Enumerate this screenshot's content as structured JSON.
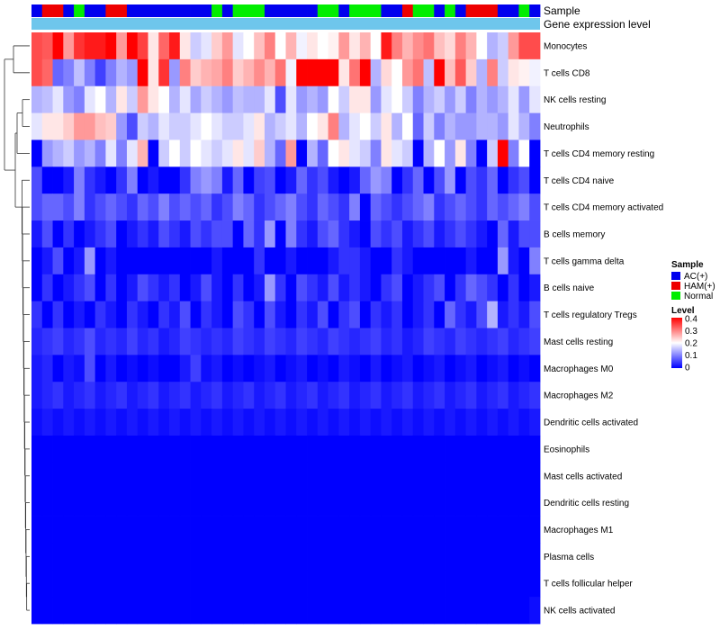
{
  "chart_data": {
    "type": "heatmap",
    "title": "",
    "tracks": {
      "sample_label": "Sample",
      "gene_label": "Gene expression level"
    },
    "sample_groups": [
      "AC(+)",
      "HAM(+)",
      "HAM(+)",
      "AC(+)",
      "Normal",
      "AC(+)",
      "AC(+)",
      "HAM(+)",
      "HAM(+)",
      "AC(+)",
      "AC(+)",
      "AC(+)",
      "AC(+)",
      "AC(+)",
      "AC(+)",
      "AC(+)",
      "AC(+)",
      "Normal",
      "AC(+)",
      "Normal",
      "Normal",
      "Normal",
      "AC(+)",
      "AC(+)",
      "AC(+)",
      "AC(+)",
      "AC(+)",
      "Normal",
      "Normal",
      "AC(+)",
      "Normal",
      "Normal",
      "Normal",
      "AC(+)",
      "AC(+)",
      "HAM(+)",
      "Normal",
      "Normal",
      "AC(+)",
      "Normal",
      "AC(+)",
      "HAM(+)",
      "HAM(+)",
      "HAM(+)",
      "AC(+)",
      "AC(+)",
      "Normal",
      "AC(+)"
    ],
    "rows": [
      "Monocytes",
      "T cells CD8",
      "NK cells resting",
      "Neutrophils",
      "T cells CD4 memory resting",
      "T cells CD4 naive",
      "T cells CD4 memory activated",
      "B cells memory",
      "T cells gamma delta",
      "B cells naive",
      "T cells regulatory  Tregs",
      "Mast cells resting",
      "Macrophages M0",
      "Macrophages M2",
      "Dendritic cells activated",
      "Eosinophils",
      "Mast cells activated",
      "Dendritic cells resting",
      "Macrophages M1",
      "Plasma cells",
      "T cells follicular helper",
      "NK cells activated"
    ],
    "values": [
      [
        0.34,
        0.33,
        0.4,
        0.28,
        0.36,
        0.38,
        0.38,
        0.4,
        0.28,
        0.4,
        0.35,
        0.22,
        0.32,
        0.38,
        0.22,
        0.16,
        0.18,
        0.24,
        0.28,
        0.18,
        0.2,
        0.25,
        0.3,
        0.2,
        0.26,
        0.19,
        0.22,
        0.2,
        0.21,
        0.28,
        0.22,
        0.26,
        0.2,
        0.38,
        0.3,
        0.26,
        0.29,
        0.31,
        0.25,
        0.23,
        0.3,
        0.26,
        0.2,
        0.14,
        0.16,
        0.28,
        0.34,
        0.34
      ],
      [
        0.34,
        0.32,
        0.08,
        0.1,
        0.15,
        0.1,
        0.05,
        0.1,
        0.14,
        0.12,
        0.4,
        0.22,
        0.36,
        0.12,
        0.3,
        0.24,
        0.26,
        0.27,
        0.3,
        0.24,
        0.26,
        0.29,
        0.26,
        0.31,
        0.19,
        0.42,
        0.4,
        0.4,
        0.42,
        0.22,
        0.31,
        0.4,
        0.14,
        0.23,
        0.2,
        0.28,
        0.31,
        0.15,
        0.4,
        0.25,
        0.33,
        0.24,
        0.14,
        0.3,
        0.16,
        0.22,
        0.21,
        0.19
      ],
      [
        0.14,
        0.15,
        0.18,
        0.12,
        0.1,
        0.18,
        0.2,
        0.14,
        0.22,
        0.16,
        0.28,
        0.22,
        0.2,
        0.14,
        0.18,
        0.13,
        0.16,
        0.14,
        0.12,
        0.15,
        0.14,
        0.14,
        0.18,
        0.06,
        0.18,
        0.12,
        0.14,
        0.12,
        0.2,
        0.16,
        0.22,
        0.22,
        0.12,
        0.18,
        0.2,
        0.16,
        0.1,
        0.14,
        0.16,
        0.12,
        0.16,
        0.1,
        0.14,
        0.12,
        0.14,
        0.18,
        0.12,
        0.18
      ],
      [
        0.18,
        0.22,
        0.22,
        0.24,
        0.28,
        0.28,
        0.25,
        0.24,
        0.12,
        0.06,
        0.16,
        0.14,
        0.18,
        0.16,
        0.16,
        0.18,
        0.2,
        0.18,
        0.16,
        0.16,
        0.18,
        0.22,
        0.14,
        0.16,
        0.18,
        0.14,
        0.2,
        0.22,
        0.3,
        0.14,
        0.18,
        0.2,
        0.16,
        0.22,
        0.14,
        0.2,
        0.08,
        0.16,
        0.1,
        0.14,
        0.12,
        0.12,
        0.14,
        0.14,
        0.12,
        0.18,
        0.14,
        0.1
      ],
      [
        0.0,
        0.12,
        0.14,
        0.16,
        0.12,
        0.14,
        0.1,
        0.18,
        0.1,
        0.18,
        0.26,
        0.0,
        0.16,
        0.2,
        0.16,
        0.2,
        0.18,
        0.16,
        0.18,
        0.22,
        0.18,
        0.24,
        0.14,
        0.08,
        0.28,
        0.0,
        0.14,
        0.08,
        0.2,
        0.22,
        0.18,
        0.16,
        0.1,
        0.22,
        0.18,
        0.16,
        0.0,
        0.14,
        0.2,
        0.12,
        0.22,
        0.1,
        0.0,
        0.16,
        0.4,
        0.1,
        0.2,
        0.0
      ],
      [
        0.06,
        0.0,
        0.0,
        0.02,
        0.1,
        0.04,
        0.02,
        0.0,
        0.04,
        0.1,
        0.0,
        0.02,
        0.0,
        0.0,
        0.04,
        0.1,
        0.12,
        0.1,
        0.02,
        0.08,
        0.0,
        0.05,
        0.06,
        0.0,
        0.02,
        0.08,
        0.04,
        0.06,
        0.02,
        0.0,
        0.02,
        0.08,
        0.12,
        0.1,
        0.0,
        0.04,
        0.08,
        0.0,
        0.06,
        0.12,
        0.0,
        0.06,
        0.04,
        0.08,
        0.0,
        0.04,
        0.06,
        0.0
      ],
      [
        0.06,
        0.08,
        0.08,
        0.06,
        0.1,
        0.04,
        0.06,
        0.08,
        0.06,
        0.04,
        0.08,
        0.06,
        0.1,
        0.06,
        0.08,
        0.06,
        0.08,
        0.04,
        0.06,
        0.1,
        0.08,
        0.04,
        0.06,
        0.08,
        0.1,
        0.06,
        0.04,
        0.08,
        0.06,
        0.04,
        0.1,
        0.0,
        0.08,
        0.06,
        0.04,
        0.06,
        0.08,
        0.1,
        0.04,
        0.06,
        0.08,
        0.06,
        0.04,
        0.08,
        0.06,
        0.08,
        0.1,
        0.06
      ],
      [
        0.02,
        0.06,
        0.0,
        0.04,
        0.0,
        0.02,
        0.04,
        0.06,
        0.0,
        0.02,
        0.04,
        0.02,
        0.06,
        0.04,
        0.02,
        0.06,
        0.04,
        0.06,
        0.06,
        0.0,
        0.08,
        0.04,
        0.12,
        0.0,
        0.1,
        0.04,
        0.02,
        0.06,
        0.08,
        0.04,
        0.02,
        0.0,
        0.06,
        0.04,
        0.06,
        0.02,
        0.04,
        0.06,
        0.02,
        0.04,
        0.06,
        0.04,
        0.02,
        0.0,
        0.08,
        0.02,
        0.06,
        0.06
      ],
      [
        0.0,
        0.02,
        0.06,
        0.0,
        0.02,
        0.12,
        0.0,
        0.02,
        0.0,
        0.0,
        0.0,
        0.0,
        0.0,
        0.0,
        0.0,
        0.0,
        0.0,
        0.02,
        0.0,
        0.0,
        0.0,
        0.04,
        0.0,
        0.0,
        0.02,
        0.0,
        0.0,
        0.0,
        0.02,
        0.04,
        0.04,
        0.02,
        0.0,
        0.0,
        0.04,
        0.02,
        0.0,
        0.0,
        0.0,
        0.0,
        0.0,
        0.02,
        0.0,
        0.0,
        0.12,
        0.02,
        0.0,
        0.1
      ],
      [
        0.0,
        0.04,
        0.0,
        0.02,
        0.04,
        0.06,
        0.0,
        0.04,
        0.0,
        0.02,
        0.06,
        0.04,
        0.02,
        0.04,
        0.0,
        0.02,
        0.06,
        0.02,
        0.0,
        0.04,
        0.0,
        0.02,
        0.12,
        0.04,
        0.0,
        0.06,
        0.04,
        0.02,
        0.06,
        0.02,
        0.04,
        0.02,
        0.0,
        0.04,
        0.06,
        0.0,
        0.02,
        0.04,
        0.06,
        0.0,
        0.04,
        0.08,
        0.06,
        0.04,
        0.0,
        0.04,
        0.0,
        0.02
      ],
      [
        0.04,
        0.0,
        0.04,
        0.0,
        0.02,
        0.0,
        0.04,
        0.02,
        0.0,
        0.04,
        0.02,
        0.0,
        0.04,
        0.02,
        0.06,
        0.0,
        0.04,
        0.02,
        0.0,
        0.06,
        0.04,
        0.0,
        0.06,
        0.02,
        0.0,
        0.04,
        0.02,
        0.06,
        0.0,
        0.04,
        0.06,
        0.0,
        0.04,
        0.02,
        0.04,
        0.0,
        0.02,
        0.04,
        0.0,
        0.08,
        0.04,
        0.02,
        0.06,
        0.14,
        0.02,
        0.04,
        0.02,
        0.06
      ],
      [
        0.03,
        0.04,
        0.05,
        0.03,
        0.04,
        0.06,
        0.03,
        0.04,
        0.03,
        0.05,
        0.03,
        0.04,
        0.02,
        0.03,
        0.05,
        0.04,
        0.03,
        0.04,
        0.03,
        0.05,
        0.04,
        0.03,
        0.05,
        0.04,
        0.03,
        0.05,
        0.04,
        0.03,
        0.05,
        0.04,
        0.03,
        0.04,
        0.05,
        0.03,
        0.04,
        0.02,
        0.03,
        0.05,
        0.04,
        0.03,
        0.05,
        0.04,
        0.03,
        0.04,
        0.05,
        0.03,
        0.04,
        0.05
      ],
      [
        0.02,
        0.03,
        0.0,
        0.02,
        0.01,
        0.06,
        0.0,
        0.02,
        0.0,
        0.01,
        0.0,
        0.01,
        0.0,
        0.0,
        0.02,
        0.05,
        0.01,
        0.02,
        0.0,
        0.01,
        0.0,
        0.01,
        0.02,
        0.0,
        0.01,
        0.02,
        0.0,
        0.01,
        0.0,
        0.02,
        0.01,
        0.0,
        0.02,
        0.0,
        0.01,
        0.02,
        0.0,
        0.01,
        0.02,
        0.0,
        0.01,
        0.02,
        0.0,
        0.01,
        0.02,
        0.0,
        0.01,
        0.0
      ],
      [
        0.02,
        0.03,
        0.04,
        0.02,
        0.03,
        0.04,
        0.02,
        0.03,
        0.04,
        0.02,
        0.03,
        0.04,
        0.02,
        0.03,
        0.04,
        0.02,
        0.03,
        0.04,
        0.02,
        0.03,
        0.04,
        0.02,
        0.03,
        0.04,
        0.02,
        0.03,
        0.04,
        0.02,
        0.03,
        0.04,
        0.02,
        0.03,
        0.04,
        0.02,
        0.03,
        0.04,
        0.02,
        0.03,
        0.04,
        0.02,
        0.03,
        0.04,
        0.02,
        0.03,
        0.04,
        0.02,
        0.03,
        0.04
      ],
      [
        0.01,
        0.02,
        0.01,
        0.02,
        0.01,
        0.02,
        0.01,
        0.02,
        0.01,
        0.02,
        0.01,
        0.02,
        0.01,
        0.02,
        0.01,
        0.02,
        0.01,
        0.02,
        0.01,
        0.02,
        0.01,
        0.02,
        0.01,
        0.02,
        0.01,
        0.02,
        0.01,
        0.02,
        0.01,
        0.02,
        0.01,
        0.02,
        0.01,
        0.02,
        0.01,
        0.02,
        0.01,
        0.02,
        0.01,
        0.02,
        0.01,
        0.02,
        0.01,
        0.02,
        0.01,
        0.02,
        0.01,
        0.02
      ],
      [
        0,
        0,
        0,
        0,
        0,
        0,
        0,
        0,
        0,
        0,
        0,
        0,
        0,
        0,
        0,
        0,
        0,
        0,
        0,
        0,
        0,
        0,
        0,
        0,
        0,
        0,
        0,
        0,
        0,
        0,
        0,
        0,
        0,
        0,
        0,
        0,
        0,
        0,
        0,
        0,
        0,
        0,
        0,
        0,
        0,
        0,
        0,
        0
      ],
      [
        0,
        0,
        0,
        0,
        0,
        0,
        0,
        0,
        0,
        0,
        0,
        0,
        0,
        0,
        0,
        0,
        0,
        0,
        0,
        0,
        0,
        0,
        0,
        0,
        0,
        0,
        0,
        0,
        0,
        0,
        0,
        0,
        0,
        0,
        0,
        0,
        0,
        0,
        0,
        0,
        0,
        0,
        0,
        0,
        0,
        0,
        0,
        0
      ],
      [
        0,
        0,
        0,
        0,
        0,
        0,
        0,
        0,
        0,
        0,
        0,
        0,
        0,
        0,
        0,
        0,
        0,
        0,
        0,
        0,
        0,
        0,
        0,
        0,
        0,
        0,
        0,
        0,
        0,
        0,
        0,
        0,
        0,
        0,
        0,
        0,
        0,
        0,
        0,
        0,
        0,
        0,
        0,
        0,
        0,
        0,
        0,
        0
      ],
      [
        0,
        0,
        0,
        0,
        0,
        0,
        0,
        0,
        0,
        0,
        0,
        0,
        0,
        0,
        0,
        0,
        0,
        0,
        0,
        0,
        0,
        0,
        0,
        0,
        0,
        0,
        0,
        0,
        0,
        0,
        0,
        0,
        0,
        0,
        0,
        0,
        0,
        0,
        0,
        0,
        0,
        0,
        0,
        0,
        0,
        0,
        0,
        0
      ],
      [
        0,
        0,
        0,
        0,
        0,
        0,
        0,
        0,
        0,
        0,
        0,
        0,
        0,
        0,
        0,
        0,
        0,
        0,
        0,
        0,
        0,
        0,
        0,
        0,
        0,
        0,
        0,
        0,
        0,
        0,
        0,
        0,
        0,
        0,
        0,
        0,
        0,
        0,
        0,
        0,
        0,
        0,
        0,
        0,
        0,
        0,
        0,
        0
      ],
      [
        0,
        0,
        0,
        0,
        0,
        0,
        0,
        0,
        0,
        0,
        0,
        0,
        0,
        0,
        0,
        0,
        0,
        0,
        0,
        0,
        0,
        0,
        0,
        0,
        0,
        0,
        0,
        0,
        0,
        0,
        0,
        0,
        0,
        0,
        0,
        0,
        0,
        0,
        0,
        0,
        0,
        0,
        0,
        0,
        0,
        0,
        0,
        0
      ],
      [
        0,
        0,
        0,
        0,
        0,
        0,
        0,
        0,
        0,
        0,
        0,
        0,
        0,
        0,
        0,
        0,
        0,
        0,
        0,
        0,
        0,
        0,
        0,
        0,
        0,
        0,
        0,
        0,
        0,
        0,
        0,
        0,
        0,
        0,
        0,
        0,
        0,
        0,
        0,
        0,
        0,
        0,
        0,
        0,
        0,
        0,
        0,
        0.01
      ]
    ],
    "scale": {
      "min": 0,
      "max": 0.4
    },
    "legend": {
      "sample_title": "Sample",
      "groups": [
        {
          "name": "AC(+)",
          "color": "#0000ee"
        },
        {
          "name": "HAM(+)",
          "color": "#ee0000"
        },
        {
          "name": "Normal",
          "color": "#00ee00"
        }
      ],
      "level_title": "Level",
      "level_ticks": [
        "0.4",
        "0.3",
        "0.2",
        "0.1",
        "0"
      ]
    },
    "colors": {
      "low": "#0000ff",
      "mid": "#ffffff",
      "high": "#ff0000",
      "gene_track": "#6ec6ec"
    }
  }
}
